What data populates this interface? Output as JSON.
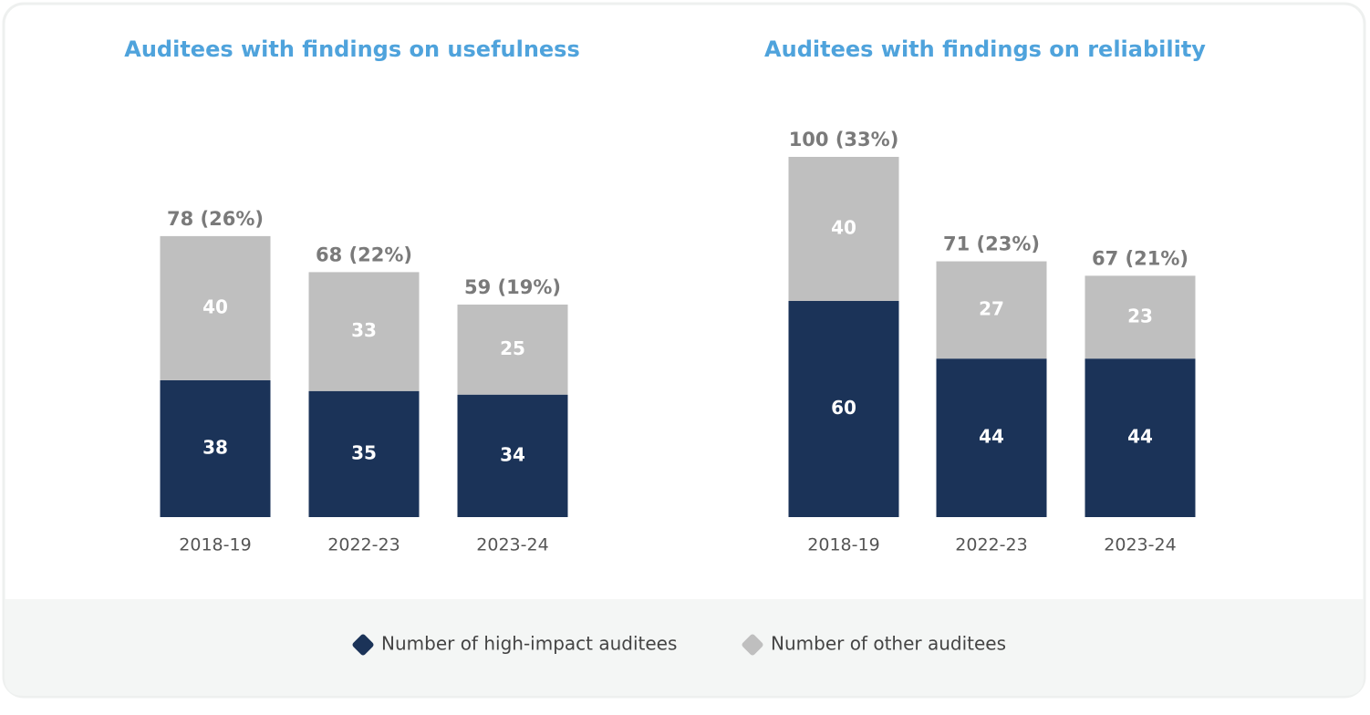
{
  "chart_data": [
    {
      "type": "stacked-bar",
      "title": "Auditees with findings on usefulness",
      "categories": [
        "2018-19",
        "2022-23",
        "2023-24"
      ],
      "series": [
        {
          "name": "Number of high-impact auditees",
          "color": "#1b3358",
          "values": [
            38,
            35,
            34
          ]
        },
        {
          "name": "Number of other auditees",
          "color": "#bfbfbf",
          "values": [
            40,
            33,
            25
          ]
        }
      ],
      "total_labels": [
        "78 (26%)",
        "68 (22%)",
        "59 (19%)"
      ],
      "ylim": [
        0,
        100
      ]
    },
    {
      "type": "stacked-bar",
      "title": "Auditees with findings on reliability",
      "categories": [
        "2018-19",
        "2022-23",
        "2023-24"
      ],
      "series": [
        {
          "color": "#1b3358",
          "values": [
            60,
            44,
            44
          ]
        },
        {
          "color": "#bfbfbf",
          "values": [
            40,
            27,
            23
          ]
        }
      ],
      "total_labels": [
        "100 (33%)",
        "71 (23%)",
        "67 (21%)"
      ],
      "ylim": [
        0,
        100
      ]
    }
  ]
}
